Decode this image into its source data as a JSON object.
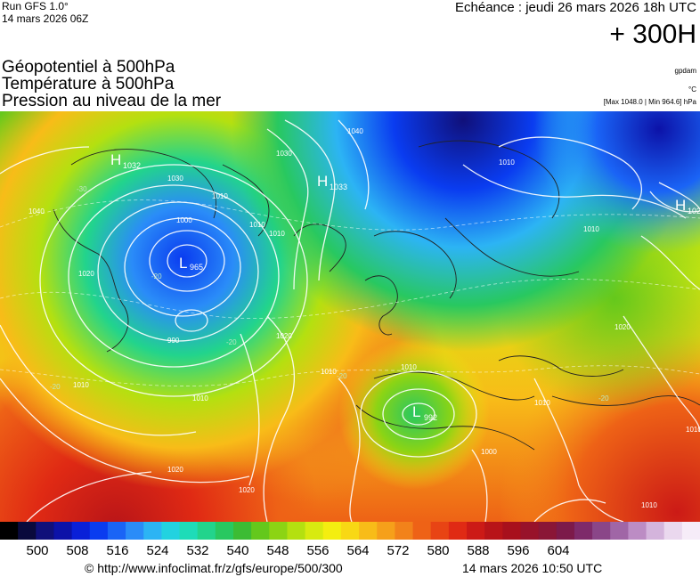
{
  "header": {
    "run": "Run GFS 1.0°",
    "run_date": "14 mars 2026 06Z",
    "valid": "Echéance : jeudi 26 mars 2026 18h UTC",
    "lead": "+ 300H"
  },
  "titles": [
    "Géopotentiel à 500hPa",
    "Température à 500hPa",
    "Pression au niveau de la mer"
  ],
  "units": {
    "geopotential": "gpdam",
    "temperature": "°C",
    "maxmin": "[Max 1048.0 | Min 964.6] hPa"
  },
  "map_labels": {
    "highs": [
      {
        "letter": "H",
        "value": "1032"
      },
      {
        "letter": "H",
        "value": "1033"
      },
      {
        "letter": "H",
        "value": "1024"
      }
    ],
    "lows": [
      {
        "letter": "L",
        "value": "965"
      },
      {
        "letter": "L",
        "value": "992"
      }
    ],
    "isobars": [
      "1040",
      "1030",
      "1010",
      "1030",
      "1040",
      "1000",
      "1010",
      "1010",
      "1020",
      "990",
      "1020",
      "1010",
      "1010",
      "1010",
      "1020",
      "1010",
      "1010",
      "1020",
      "1010",
      "1020",
      "1000",
      "1010",
      "1010",
      "1010"
    ],
    "temperatures": [
      "-30",
      "-20",
      "-20",
      "-20",
      "-20",
      "-20"
    ]
  },
  "colorbar": {
    "ticks": [
      "500",
      "508",
      "516",
      "524",
      "532",
      "540",
      "548",
      "556",
      "564",
      "572",
      "580",
      "588",
      "596",
      "604"
    ],
    "colors": [
      "#000000",
      "#0a0a3c",
      "#10107a",
      "#0c12a8",
      "#0a20d8",
      "#0a3cf0",
      "#1a64f6",
      "#2a8cf8",
      "#2cb4f4",
      "#22d2e0",
      "#1edcb8",
      "#22d48c",
      "#28c860",
      "#3cbc34",
      "#64c81c",
      "#8cd414",
      "#b4e010",
      "#d8ea10",
      "#f4ee10",
      "#f8d814",
      "#f8bc18",
      "#f6a01a",
      "#f2821a",
      "#ee6216",
      "#e84414",
      "#e02a14",
      "#cc1a16",
      "#b81418",
      "#a8101c",
      "#98122a",
      "#8a1636",
      "#7c1a4a",
      "#7e2a6a",
      "#8a4688",
      "#a066a6",
      "#bc8cc4",
      "#d4b4dc",
      "#ead8ee",
      "#f6ecf8"
    ]
  },
  "footer": {
    "source": "© http://www.infoclimat.fr/z/gfs/europe/500/300",
    "generated": "14 mars 2026 10:50 UTC"
  }
}
